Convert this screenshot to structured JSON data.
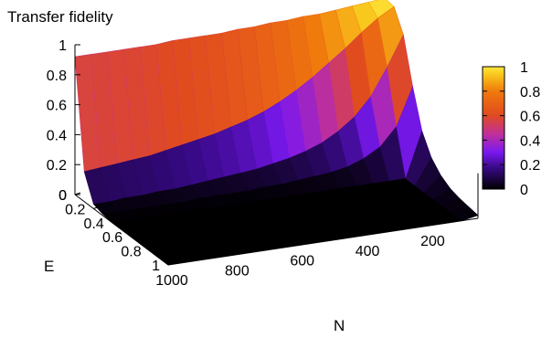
{
  "chart_data": {
    "type": "surface3d",
    "title": "Transfer fidelity",
    "zlabel": "Transfer fidelity",
    "xlabel": "N",
    "ylabel": "E",
    "x_ticks": [
      1000,
      800,
      600,
      400,
      200
    ],
    "y_ticks": [
      0,
      0.2,
      0.4,
      0.6,
      0.8,
      1
    ],
    "z_ticks": [
      0,
      0.2,
      0.4,
      0.6,
      0.8,
      1
    ],
    "colorbar_ticks": [
      0,
      0.2,
      0.4,
      0.6,
      0.8,
      1
    ],
    "xlim": [
      50,
      1000
    ],
    "ylim": [
      0,
      1
    ],
    "zlim": [
      0,
      1
    ],
    "grid": {
      "N": [
        1000,
        950,
        900,
        850,
        800,
        750,
        700,
        650,
        600,
        550,
        500,
        450,
        400,
        350,
        300,
        250,
        200,
        150,
        100,
        50
      ],
      "E": [
        0,
        0.1,
        0.2,
        0.3,
        0.4,
        0.5,
        0.6,
        0.7,
        0.8,
        0.9,
        1.0
      ],
      "fidelity_at_E0": [
        0.92,
        0.92,
        0.92,
        0.92,
        0.92,
        0.92,
        0.93,
        0.93,
        0.93,
        0.93,
        0.94,
        0.94,
        0.95,
        0.95,
        0.96,
        0.96,
        0.97,
        0.98,
        0.99,
        1.0
      ],
      "fidelity_at_E0.1": [
        0.2,
        0.21,
        0.22,
        0.23,
        0.24,
        0.26,
        0.28,
        0.3,
        0.32,
        0.35,
        0.38,
        0.42,
        0.47,
        0.53,
        0.6,
        0.68,
        0.76,
        0.85,
        0.93,
        0.99
      ],
      "fidelity_at_E0.2": [
        0.03,
        0.03,
        0.04,
        0.04,
        0.05,
        0.05,
        0.06,
        0.07,
        0.08,
        0.09,
        0.1,
        0.12,
        0.14,
        0.17,
        0.21,
        0.27,
        0.35,
        0.47,
        0.65,
        0.85
      ],
      "fidelity_at_E0.3": [
        0.01,
        0.01,
        0.01,
        0.01,
        0.01,
        0.01,
        0.02,
        0.02,
        0.02,
        0.02,
        0.03,
        0.03,
        0.04,
        0.05,
        0.06,
        0.08,
        0.12,
        0.18,
        0.3,
        0.55
      ],
      "fidelity_at_E0.4_to_1": 0.0,
      "fidelity_at_E0.4_to_1_near_N50": [
        0.3,
        0.17,
        0.1,
        0.06,
        0.04,
        0.03,
        0.02
      ]
    },
    "colorscale": [
      "#000000",
      "#3a0a8a",
      "#7a18f0",
      "#c0309a",
      "#e04a20",
      "#f07a0c",
      "#f8c41c",
      "#ffe83c"
    ]
  }
}
